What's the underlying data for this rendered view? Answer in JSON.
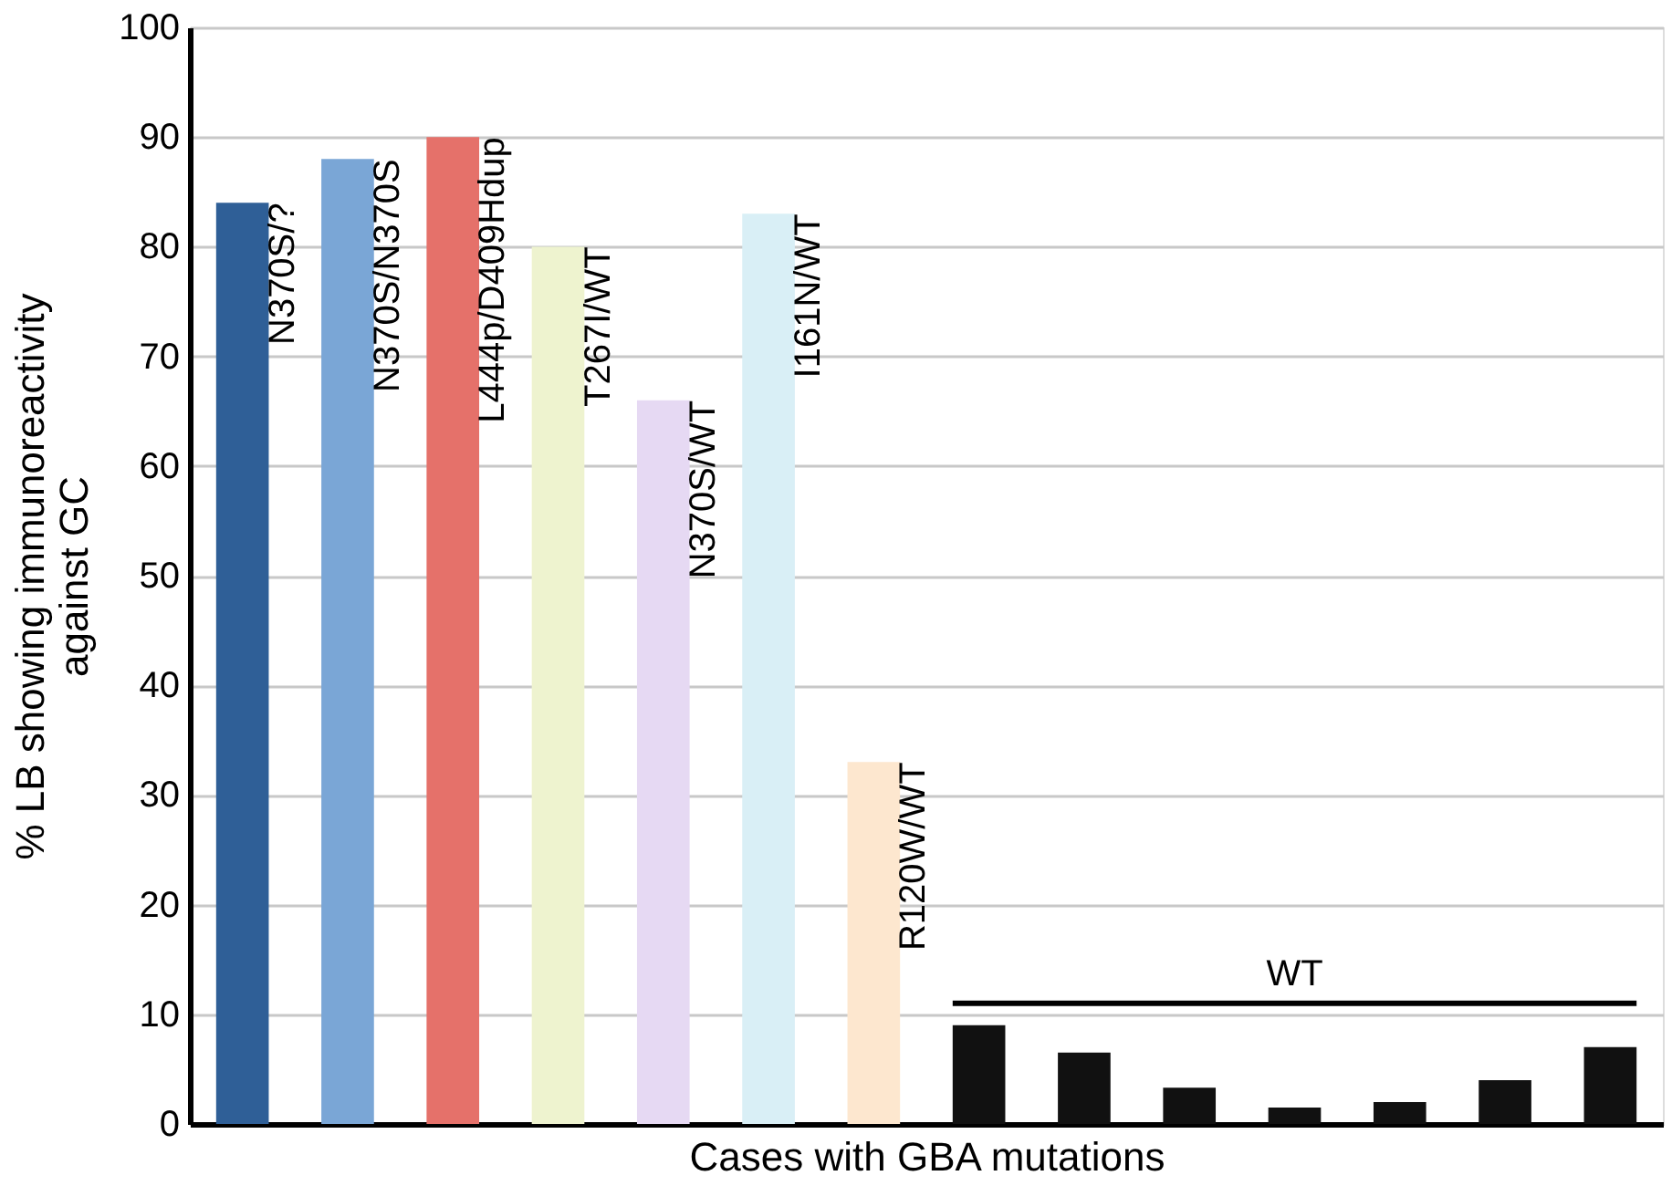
{
  "chart_data": {
    "type": "bar",
    "xlabel": "Cases with GBA mutations",
    "ylabel": "% LB showing immunoreactivity against GC",
    "categories": [
      null,
      null,
      null,
      null,
      null,
      null,
      null,
      null,
      null,
      null,
      null,
      null,
      null,
      null
    ],
    "values": [
      84,
      88,
      90,
      80,
      66,
      83,
      33,
      9,
      6.5,
      3.3,
      1.5,
      2,
      4,
      7
    ],
    "colors": [
      "#2f5f97",
      "#7aa6d6",
      "#e5716a",
      "#eef3cf",
      "#e6d9f3",
      "#d9eff6",
      "#fde7cf",
      "#111111",
      "#111111",
      "#111111",
      "#111111",
      "#111111",
      "#111111",
      "#111111"
    ],
    "annotations": [
      "N370S/?",
      "N370S/N370S",
      "L444p/D409Hdup",
      "T267I/WT",
      "N370S/WT",
      "I161N/WT",
      "R120W/WT"
    ],
    "ref_lines": [
      {
        "axis": "y",
        "value": 11,
        "label": "WT"
      }
    ],
    "ylim": [
      0,
      100
    ],
    "yticks": [
      0,
      10,
      20,
      30,
      40,
      50,
      60,
      70,
      80,
      90,
      100
    ],
    "grid": "y",
    "tick_labels": "y"
  }
}
